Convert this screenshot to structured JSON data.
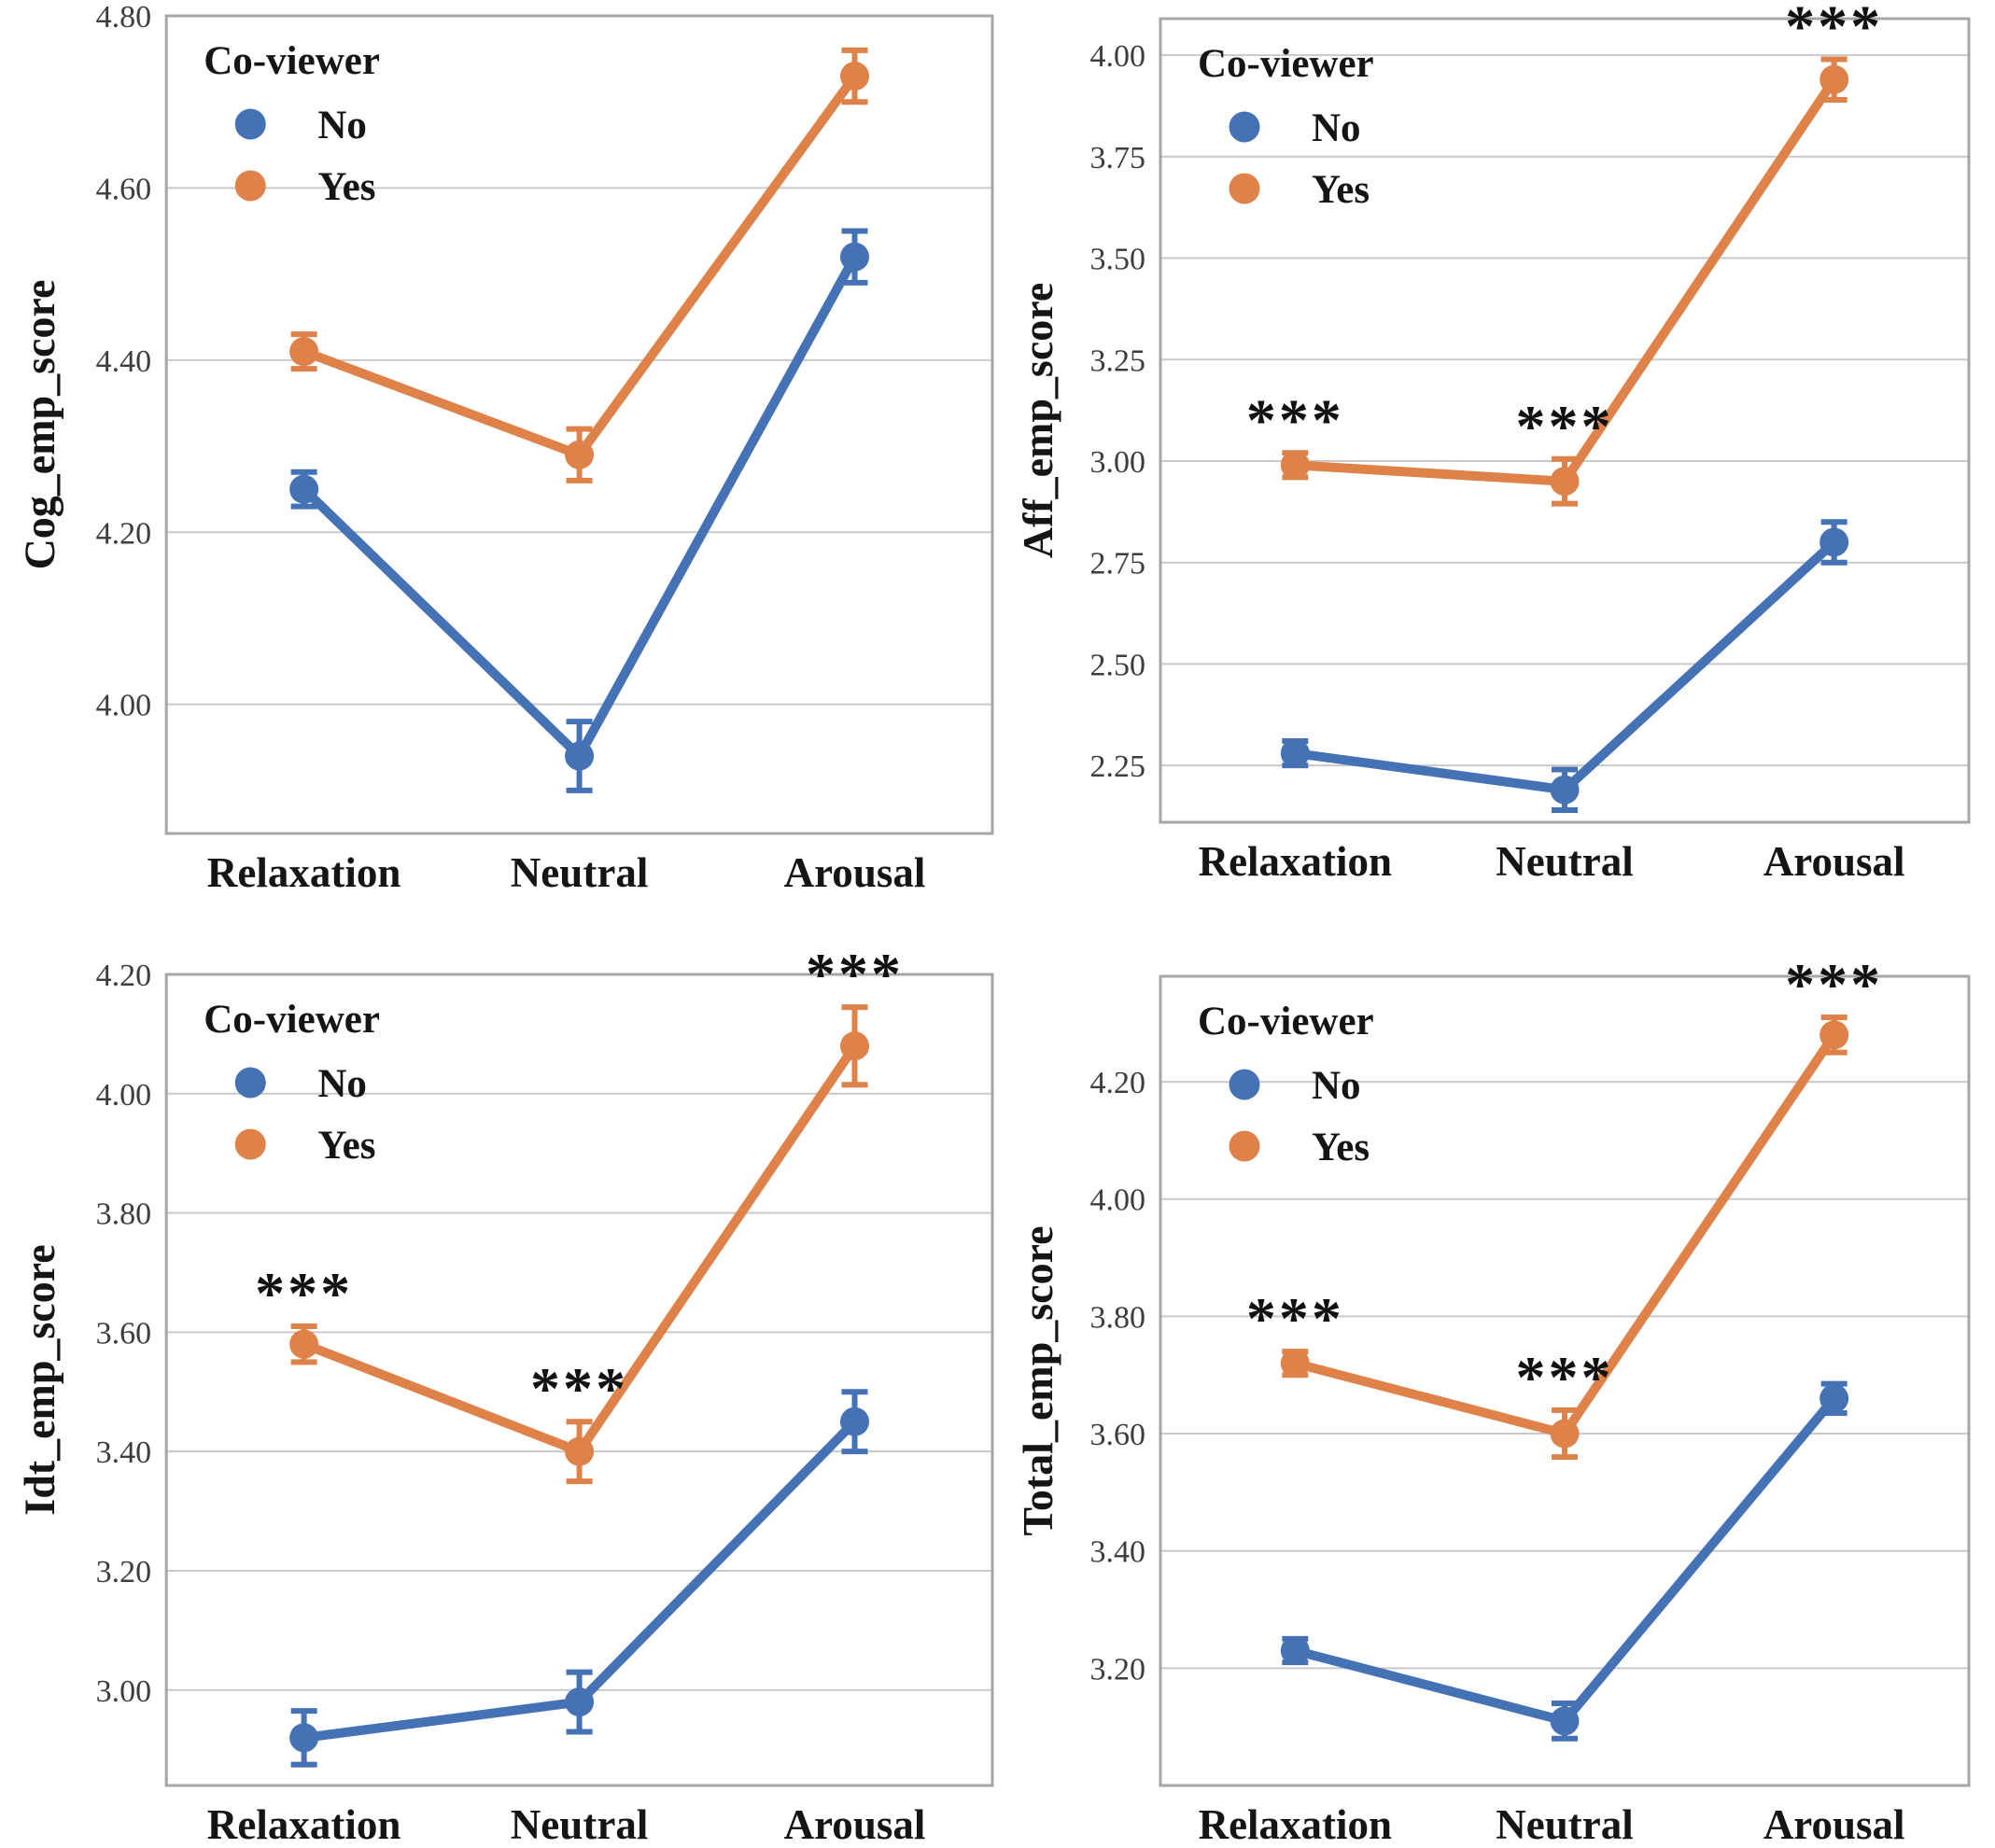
{
  "style": {
    "grid_color": "#c9c9c9",
    "border_color": "#a6a6a6",
    "tick_text_color": "#3d3d3d",
    "label_text_color": "#151515",
    "series_colors": {
      "no": "#4472B4",
      "yes": "#DE8249"
    },
    "significance_color": "#111111"
  },
  "chart_data": [
    {
      "type": "line",
      "ylabel": "Cog_emp_score",
      "categories": [
        "Relaxation",
        "Neutral",
        "Arousal"
      ],
      "legend": {
        "title": "Co-viewer",
        "position": "upper-left",
        "entries": [
          "No",
          "Yes"
        ]
      },
      "yticks": [
        4.0,
        4.2,
        4.4,
        4.6,
        4.8
      ],
      "ylim": [
        3.85,
        4.8
      ],
      "grid": true,
      "series": [
        {
          "name": "No",
          "color": "#4472B4",
          "values": [
            4.25,
            3.94,
            4.52
          ],
          "errors": [
            0.02,
            0.04,
            0.03
          ]
        },
        {
          "name": "Yes",
          "color": "#DE8249",
          "values": [
            4.41,
            4.29,
            4.73
          ],
          "errors": [
            0.02,
            0.03,
            0.03
          ]
        }
      ],
      "significance": [
        "",
        "",
        ""
      ]
    },
    {
      "type": "line",
      "ylabel": "Aff_emp_score",
      "categories": [
        "Relaxation",
        "Neutral",
        "Arousal"
      ],
      "legend": {
        "title": "Co-viewer",
        "position": "upper-left",
        "entries": [
          "No",
          "Yes"
        ]
      },
      "yticks": [
        2.25,
        2.5,
        2.75,
        3.0,
        3.25,
        3.5,
        3.75,
        4.0
      ],
      "ylim": [
        2.11,
        4.09
      ],
      "grid": true,
      "series": [
        {
          "name": "No",
          "color": "#4472B4",
          "values": [
            2.28,
            2.19,
            2.8
          ],
          "errors": [
            0.03,
            0.05,
            0.05
          ]
        },
        {
          "name": "Yes",
          "color": "#DE8249",
          "values": [
            2.99,
            2.95,
            3.94
          ],
          "errors": [
            0.03,
            0.055,
            0.05
          ]
        }
      ],
      "significance": [
        "***",
        "***",
        "***"
      ]
    },
    {
      "type": "line",
      "ylabel": "Idt_emp_score",
      "categories": [
        "Relaxation",
        "Neutral",
        "Arousal"
      ],
      "legend": {
        "title": "Co-viewer",
        "position": "upper-left",
        "entries": [
          "No",
          "Yes"
        ]
      },
      "yticks": [
        3.0,
        3.2,
        3.4,
        3.6,
        3.8,
        4.0,
        4.2
      ],
      "ylim": [
        2.84,
        4.2
      ],
      "grid": true,
      "series": [
        {
          "name": "No",
          "color": "#4472B4",
          "values": [
            2.92,
            2.98,
            3.45
          ],
          "errors": [
            0.045,
            0.05,
            0.05
          ]
        },
        {
          "name": "Yes",
          "color": "#DE8249",
          "values": [
            3.58,
            3.4,
            4.08
          ],
          "errors": [
            0.03,
            0.05,
            0.065
          ]
        }
      ],
      "significance": [
        "***",
        "***",
        "***"
      ]
    },
    {
      "type": "line",
      "ylabel": "Total_emp_score",
      "categories": [
        "Relaxation",
        "Neutral",
        "Arousal"
      ],
      "legend": {
        "title": "Co-viewer",
        "position": "upper-left",
        "entries": [
          "No",
          "Yes"
        ]
      },
      "yticks": [
        3.2,
        3.4,
        3.6,
        3.8,
        4.0,
        4.2
      ],
      "ylim": [
        3.0,
        4.38
      ],
      "grid": true,
      "series": [
        {
          "name": "No",
          "color": "#4472B4",
          "values": [
            3.23,
            3.11,
            3.66
          ],
          "errors": [
            0.02,
            0.03,
            0.025
          ]
        },
        {
          "name": "Yes",
          "color": "#DE8249",
          "values": [
            3.72,
            3.6,
            4.28
          ],
          "errors": [
            0.02,
            0.04,
            0.03
          ]
        }
      ],
      "significance": [
        "***",
        "***",
        "***"
      ]
    }
  ]
}
